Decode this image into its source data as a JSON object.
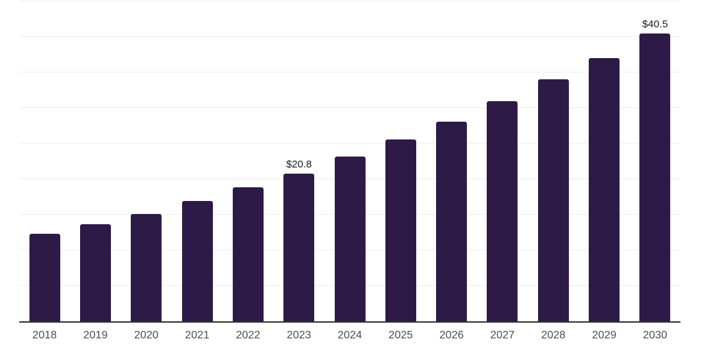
{
  "chart_data": {
    "type": "bar",
    "title": "",
    "xlabel": "",
    "ylabel": "",
    "categories": [
      "2018",
      "2019",
      "2020",
      "2021",
      "2022",
      "2023",
      "2024",
      "2025",
      "2026",
      "2027",
      "2028",
      "2029",
      "2030"
    ],
    "values": [
      12.3,
      13.7,
      15.1,
      16.9,
      18.8,
      20.8,
      23.2,
      25.6,
      28.1,
      31.0,
      34.0,
      37.0,
      40.5
    ],
    "data_labels": {
      "2023": "$20.8",
      "2030": "$40.5"
    },
    "ylim": [
      0,
      45
    ],
    "grid_step": 5,
    "grid": true,
    "legend": false,
    "y_tick_labels_visible": false,
    "colors": {
      "bar": "#2e1a47",
      "gridline": "#ededed",
      "axis_line": "#333333",
      "tick_label": "#4d4d4d",
      "data_label": "#1a1a1a",
      "background": "#ffffff"
    }
  }
}
